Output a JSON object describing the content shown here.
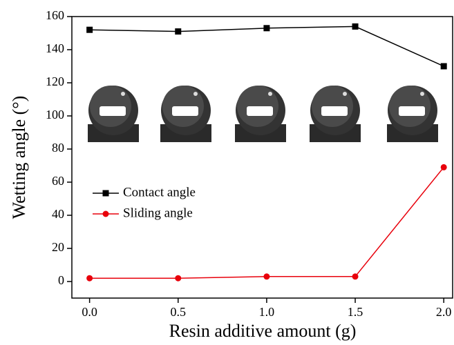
{
  "chart_data": {
    "type": "line",
    "x_label": "Resin additive amount (g)",
    "y_label": "Wetting angle (°)",
    "x": [
      0,
      0.5,
      1,
      1.5,
      2
    ],
    "series": [
      {
        "name": "Contact angle",
        "color": "#000000",
        "marker": "square",
        "values": [
          152,
          151,
          153,
          154,
          130
        ]
      },
      {
        "name": "Sliding angle",
        "color": "#e8000b",
        "marker": "circle",
        "values": [
          2,
          2,
          3,
          3,
          69
        ]
      }
    ],
    "xlim": [
      -0.1,
      2.05
    ],
    "ylim": [
      -10,
      160
    ],
    "xticks": [
      {
        "value": 0,
        "label": "0.0"
      },
      {
        "value": 0.5,
        "label": "0.5"
      },
      {
        "value": 1,
        "label": "1.0"
      },
      {
        "value": 1.5,
        "label": "1.5"
      },
      {
        "value": 2,
        "label": "2.0"
      }
    ],
    "yticks": [
      0,
      20,
      40,
      60,
      80,
      100,
      120,
      140,
      160
    ],
    "legend": "center left",
    "grid": false
  }
}
